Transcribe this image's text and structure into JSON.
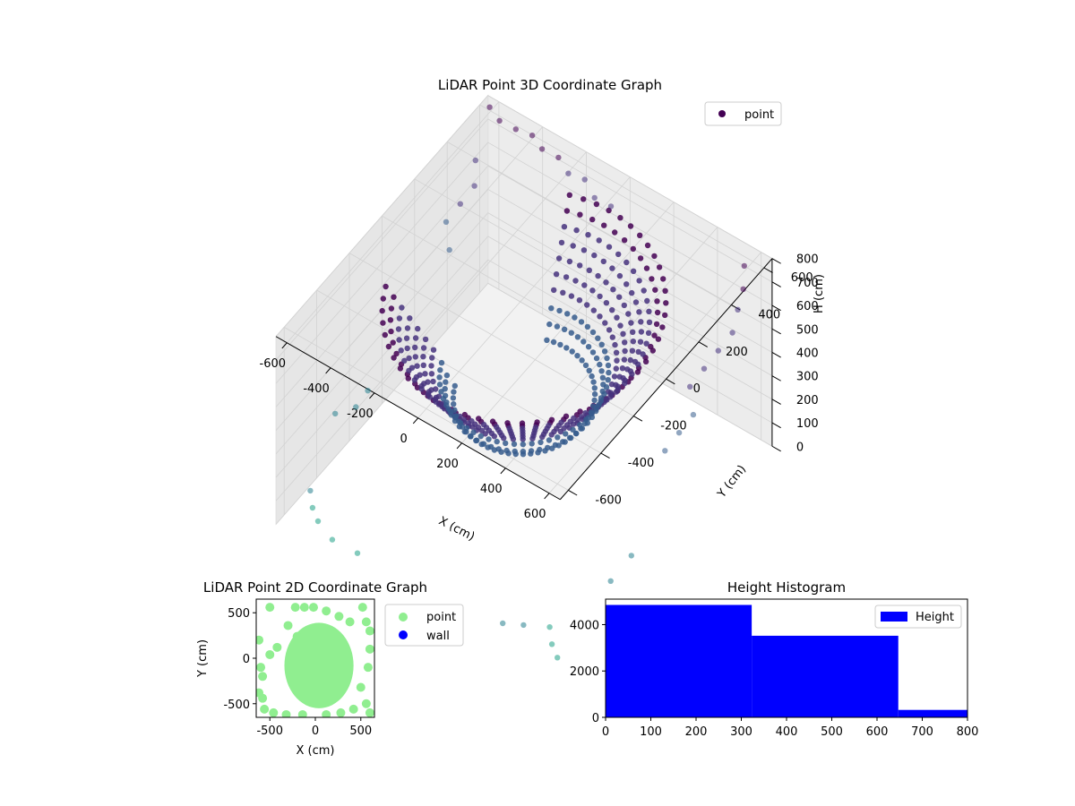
{
  "chart_data": [
    {
      "type": "scatter",
      "projection": "3d",
      "title": "LiDAR Point 3D Coordinate Graph",
      "xlabel": "X (cm)",
      "ylabel": "Y (cm)",
      "zlabel": "H (cm)",
      "x_ticks": [
        -600,
        -400,
        -200,
        0,
        200,
        400,
        600
      ],
      "y_ticks": [
        -600,
        -400,
        -200,
        0,
        200,
        400,
        600
      ],
      "z_ticks": [
        0,
        100,
        200,
        300,
        400,
        500,
        600,
        700,
        800
      ],
      "xlim": [
        -650,
        650
      ],
      "ylim": [
        -650,
        650
      ],
      "zlim": [
        0,
        800
      ],
      "z_inverted": true,
      "grid": true,
      "legend": {
        "entries": [
          "point"
        ],
        "position": "top-right"
      },
      "colormap": "viridis",
      "series": [
        {
          "name": "point",
          "rings": [
            {
              "radius": 520,
              "z": 760
            },
            {
              "radius": 490,
              "z": 720
            },
            {
              "radius": 460,
              "z": 680
            },
            {
              "radius": 430,
              "z": 640
            },
            {
              "radius": 400,
              "z": 600
            },
            {
              "radius": 370,
              "z": 560
            },
            {
              "radius": 340,
              "z": 520
            },
            {
              "radius": 310,
              "z": 470
            },
            {
              "radius": 290,
              "z": 420
            },
            {
              "radius": 260,
              "z": 380
            }
          ],
          "outliers": [
            [
              -620,
              620,
              790
            ],
            [
              -560,
              600,
              780
            ],
            [
              -500,
              620,
              760
            ],
            [
              -440,
              640,
              750
            ],
            [
              -380,
              620,
              740
            ],
            [
              -320,
              640,
              720
            ],
            [
              -260,
              620,
              700
            ],
            [
              -200,
              640,
              690
            ],
            [
              -140,
              620,
              660
            ],
            [
              -80,
              640,
              640
            ],
            [
              560,
              600,
              760
            ],
            [
              600,
              540,
              730
            ],
            [
              620,
              480,
              700
            ],
            [
              640,
              420,
              660
            ],
            [
              620,
              360,
              620
            ],
            [
              600,
              300,
              580
            ],
            [
              580,
              240,
              540
            ],
            [
              640,
              180,
              500
            ],
            [
              620,
              120,
              460
            ],
            [
              600,
              60,
              420
            ],
            [
              -640,
              560,
              600
            ],
            [
              -600,
              500,
              560
            ],
            [
              -620,
              440,
              520
            ],
            [
              -640,
              380,
              480
            ],
            [
              -580,
              320,
              440
            ],
            [
              -560,
              -560,
              120
            ],
            [
              -520,
              -600,
              100
            ],
            [
              -480,
              -620,
              80
            ],
            [
              -400,
              -640,
              60
            ],
            [
              -300,
              -620,
              40
            ],
            [
              520,
              -540,
              100
            ],
            [
              560,
              -580,
              80
            ],
            [
              600,
              -600,
              60
            ],
            [
              460,
              -620,
              140
            ],
            [
              380,
              -640,
              120
            ],
            [
              -640,
              -300,
              200
            ],
            [
              -620,
              -200,
              160
            ],
            [
              -640,
              -100,
              140
            ],
            [
              640,
              -200,
              200
            ],
            [
              620,
              -300,
              160
            ]
          ]
        }
      ]
    },
    {
      "type": "scatter",
      "title": "LiDAR Point 2D Coordinate Graph",
      "xlabel": "X (cm)",
      "ylabel": "Y (cm)",
      "x_ticks": [
        -500,
        0,
        500
      ],
      "y_ticks": [
        -500,
        0,
        500
      ],
      "xlim": [
        -650,
        650
      ],
      "ylim": [
        -650,
        650
      ],
      "grid": false,
      "legend": {
        "position": "right"
      },
      "series": [
        {
          "name": "point",
          "color": "#90ee90",
          "cluster": {
            "center": [
              40,
              -80
            ],
            "radii": [
              380,
              470
            ]
          },
          "points": [
            [
              -620,
              200
            ],
            [
              -500,
              560
            ],
            [
              -220,
              560
            ],
            [
              -120,
              560
            ],
            [
              -20,
              560
            ],
            [
              120,
              520
            ],
            [
              260,
              460
            ],
            [
              380,
              400
            ],
            [
              520,
              560
            ],
            [
              560,
              400
            ],
            [
              600,
              300
            ],
            [
              -620,
              -380
            ],
            [
              -560,
              -560
            ],
            [
              -460,
              -600
            ],
            [
              -320,
              -620
            ],
            [
              -140,
              -620
            ],
            [
              120,
              -620
            ],
            [
              280,
              -600
            ],
            [
              420,
              -560
            ],
            [
              560,
              -500
            ],
            [
              600,
              -600
            ],
            [
              -580,
              -200
            ],
            [
              -600,
              -100
            ],
            [
              -500,
              40
            ],
            [
              -420,
              120
            ],
            [
              -580,
              -440
            ],
            [
              580,
              -100
            ],
            [
              600,
              100
            ],
            [
              500,
              -320
            ],
            [
              -200,
              240
            ],
            [
              -300,
              360
            ]
          ]
        },
        {
          "name": "wall",
          "color": "#0000ff",
          "points": []
        }
      ]
    },
    {
      "type": "bar",
      "title": "Height Histogram",
      "xlabel": "",
      "ylabel": "",
      "x_ticks": [
        0,
        100,
        200,
        300,
        400,
        500,
        600,
        700,
        800
      ],
      "y_ticks": [
        0,
        2000,
        4000
      ],
      "xlim": [
        0,
        800
      ],
      "ylim": [
        0,
        5100
      ],
      "grid": false,
      "legend": {
        "entries": [
          "Height"
        ],
        "position": "top-right"
      },
      "series": [
        {
          "name": "Height",
          "color": "#0000ff",
          "bins": [
            {
              "start": 0,
              "end": 323,
              "count": 4850
            },
            {
              "start": 323,
              "end": 647,
              "count": 3520
            },
            {
              "start": 647,
              "end": 800,
              "count": 320
            }
          ]
        }
      ]
    }
  ]
}
